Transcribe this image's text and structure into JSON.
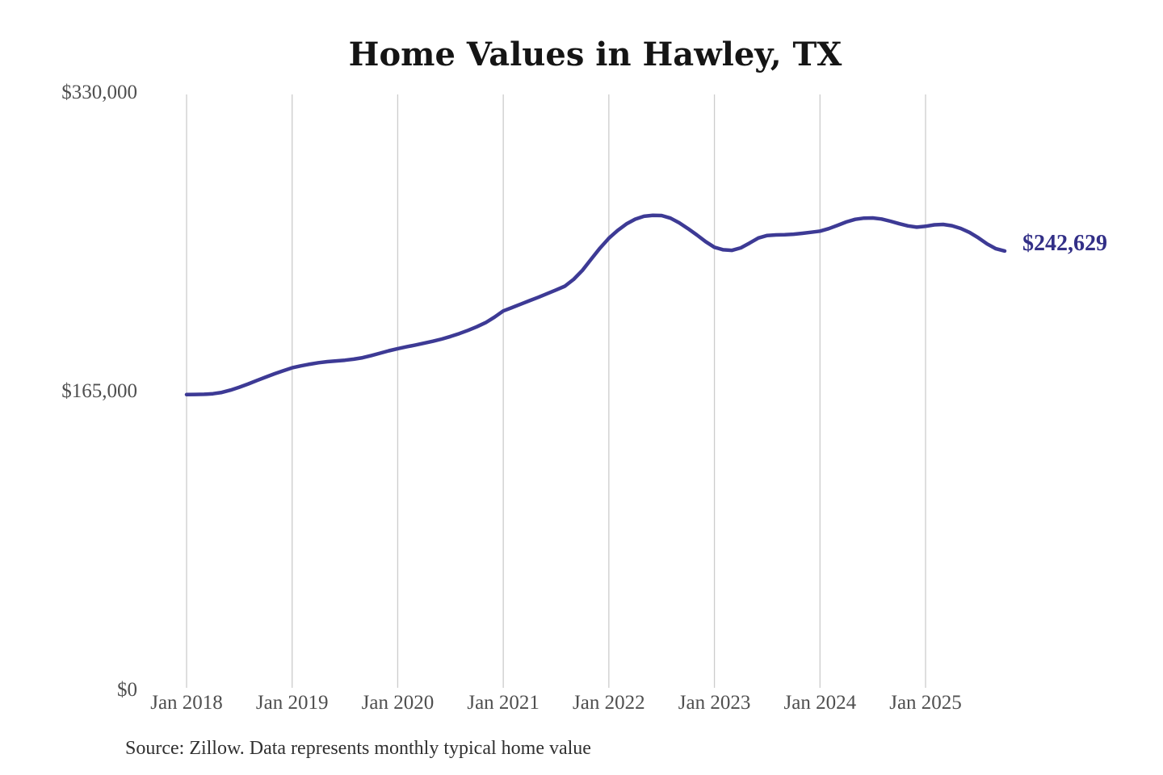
{
  "title": "Home Values in Hawley, TX",
  "source_note": "Source: Zillow. Data represents monthly typical home value",
  "colors": {
    "background": "#ffffff",
    "line": "#3d3a95",
    "value_label": "#322f87",
    "gridline": "#cccccc",
    "tick_text": "#4f4f4f",
    "title_text": "#151515",
    "source_text": "#303030"
  },
  "chart_data": {
    "type": "line",
    "title": "Home Values in Hawley, TX",
    "xlabel": "",
    "ylabel": "",
    "unit": "USD",
    "frequency": "monthly",
    "x_start": "2018-01",
    "x_end": "2025-10",
    "ylim": [
      0,
      330000
    ],
    "grid": "vertical-only",
    "legend": "none",
    "yticks": [
      {
        "label": "$0",
        "value": 0
      },
      {
        "label": "$165,000",
        "value": 165000
      },
      {
        "label": "$330,000",
        "value": 330000
      }
    ],
    "xticks": [
      "Jan 2018",
      "Jan 2019",
      "Jan 2020",
      "Jan 2021",
      "Jan 2022",
      "Jan 2023",
      "Jan 2024",
      "Jan 2025"
    ],
    "latest_value": 242629,
    "latest_value_label": "$242,629",
    "series": [
      {
        "name": "Typical home value",
        "values": [
          163300,
          163400,
          163500,
          163800,
          164500,
          165800,
          167400,
          169200,
          171100,
          173000,
          174800,
          176500,
          178100,
          179200,
          180100,
          180900,
          181500,
          181900,
          182300,
          182900,
          183700,
          184900,
          186200,
          187500,
          188700,
          189700,
          190700,
          191700,
          192800,
          194000,
          195400,
          197000,
          198800,
          200800,
          203100,
          206100,
          209500,
          211400,
          213300,
          215200,
          217100,
          219100,
          221100,
          223200,
          227000,
          232000,
          238200,
          244300,
          249700,
          254000,
          257600,
          260200,
          261800,
          262300,
          262200,
          260800,
          258200,
          255000,
          251500,
          247800,
          244700,
          243300,
          243000,
          244400,
          247000,
          249800,
          251200,
          251500,
          251600,
          251900,
          252400,
          253000,
          253600,
          255000,
          256800,
          258700,
          260100,
          260800,
          260900,
          260300,
          259100,
          257700,
          256500,
          255800,
          256300,
          257100,
          257300,
          256600,
          255100,
          252900,
          249900,
          246500,
          243900,
          242629
        ]
      }
    ]
  }
}
